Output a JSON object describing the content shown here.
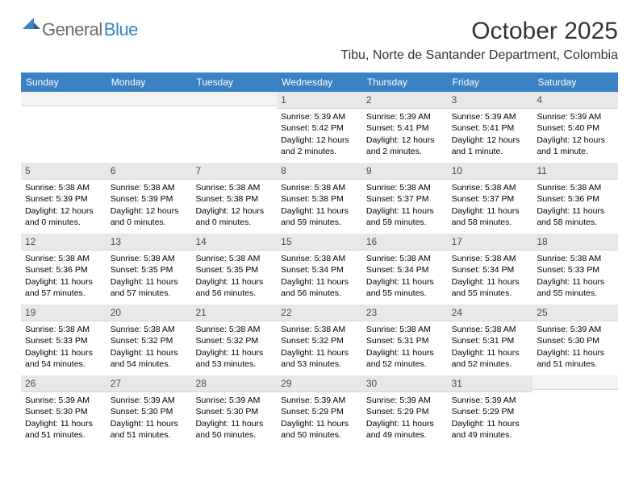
{
  "logo": {
    "text1": "General",
    "text2": "Blue"
  },
  "title": "October 2025",
  "location": "Tibu, Norte de Santander Department, Colombia",
  "weekdays": [
    "Sunday",
    "Monday",
    "Tuesday",
    "Wednesday",
    "Thursday",
    "Friday",
    "Saturday"
  ],
  "colors": {
    "header_bg": "#3b82c4",
    "daynum_bg": "#e8e8e8",
    "text": "#000000",
    "logo_gray": "#6a6a6a"
  },
  "weeks": [
    [
      {
        "n": "",
        "sr": "",
        "ss": "",
        "dl": ""
      },
      {
        "n": "",
        "sr": "",
        "ss": "",
        "dl": ""
      },
      {
        "n": "",
        "sr": "",
        "ss": "",
        "dl": ""
      },
      {
        "n": "1",
        "sr": "Sunrise: 5:39 AM",
        "ss": "Sunset: 5:42 PM",
        "dl": "Daylight: 12 hours and 2 minutes."
      },
      {
        "n": "2",
        "sr": "Sunrise: 5:39 AM",
        "ss": "Sunset: 5:41 PM",
        "dl": "Daylight: 12 hours and 2 minutes."
      },
      {
        "n": "3",
        "sr": "Sunrise: 5:39 AM",
        "ss": "Sunset: 5:41 PM",
        "dl": "Daylight: 12 hours and 1 minute."
      },
      {
        "n": "4",
        "sr": "Sunrise: 5:39 AM",
        "ss": "Sunset: 5:40 PM",
        "dl": "Daylight: 12 hours and 1 minute."
      }
    ],
    [
      {
        "n": "5",
        "sr": "Sunrise: 5:38 AM",
        "ss": "Sunset: 5:39 PM",
        "dl": "Daylight: 12 hours and 0 minutes."
      },
      {
        "n": "6",
        "sr": "Sunrise: 5:38 AM",
        "ss": "Sunset: 5:39 PM",
        "dl": "Daylight: 12 hours and 0 minutes."
      },
      {
        "n": "7",
        "sr": "Sunrise: 5:38 AM",
        "ss": "Sunset: 5:38 PM",
        "dl": "Daylight: 12 hours and 0 minutes."
      },
      {
        "n": "8",
        "sr": "Sunrise: 5:38 AM",
        "ss": "Sunset: 5:38 PM",
        "dl": "Daylight: 11 hours and 59 minutes."
      },
      {
        "n": "9",
        "sr": "Sunrise: 5:38 AM",
        "ss": "Sunset: 5:37 PM",
        "dl": "Daylight: 11 hours and 59 minutes."
      },
      {
        "n": "10",
        "sr": "Sunrise: 5:38 AM",
        "ss": "Sunset: 5:37 PM",
        "dl": "Daylight: 11 hours and 58 minutes."
      },
      {
        "n": "11",
        "sr": "Sunrise: 5:38 AM",
        "ss": "Sunset: 5:36 PM",
        "dl": "Daylight: 11 hours and 58 minutes."
      }
    ],
    [
      {
        "n": "12",
        "sr": "Sunrise: 5:38 AM",
        "ss": "Sunset: 5:36 PM",
        "dl": "Daylight: 11 hours and 57 minutes."
      },
      {
        "n": "13",
        "sr": "Sunrise: 5:38 AM",
        "ss": "Sunset: 5:35 PM",
        "dl": "Daylight: 11 hours and 57 minutes."
      },
      {
        "n": "14",
        "sr": "Sunrise: 5:38 AM",
        "ss": "Sunset: 5:35 PM",
        "dl": "Daylight: 11 hours and 56 minutes."
      },
      {
        "n": "15",
        "sr": "Sunrise: 5:38 AM",
        "ss": "Sunset: 5:34 PM",
        "dl": "Daylight: 11 hours and 56 minutes."
      },
      {
        "n": "16",
        "sr": "Sunrise: 5:38 AM",
        "ss": "Sunset: 5:34 PM",
        "dl": "Daylight: 11 hours and 55 minutes."
      },
      {
        "n": "17",
        "sr": "Sunrise: 5:38 AM",
        "ss": "Sunset: 5:34 PM",
        "dl": "Daylight: 11 hours and 55 minutes."
      },
      {
        "n": "18",
        "sr": "Sunrise: 5:38 AM",
        "ss": "Sunset: 5:33 PM",
        "dl": "Daylight: 11 hours and 55 minutes."
      }
    ],
    [
      {
        "n": "19",
        "sr": "Sunrise: 5:38 AM",
        "ss": "Sunset: 5:33 PM",
        "dl": "Daylight: 11 hours and 54 minutes."
      },
      {
        "n": "20",
        "sr": "Sunrise: 5:38 AM",
        "ss": "Sunset: 5:32 PM",
        "dl": "Daylight: 11 hours and 54 minutes."
      },
      {
        "n": "21",
        "sr": "Sunrise: 5:38 AM",
        "ss": "Sunset: 5:32 PM",
        "dl": "Daylight: 11 hours and 53 minutes."
      },
      {
        "n": "22",
        "sr": "Sunrise: 5:38 AM",
        "ss": "Sunset: 5:32 PM",
        "dl": "Daylight: 11 hours and 53 minutes."
      },
      {
        "n": "23",
        "sr": "Sunrise: 5:38 AM",
        "ss": "Sunset: 5:31 PM",
        "dl": "Daylight: 11 hours and 52 minutes."
      },
      {
        "n": "24",
        "sr": "Sunrise: 5:38 AM",
        "ss": "Sunset: 5:31 PM",
        "dl": "Daylight: 11 hours and 52 minutes."
      },
      {
        "n": "25",
        "sr": "Sunrise: 5:39 AM",
        "ss": "Sunset: 5:30 PM",
        "dl": "Daylight: 11 hours and 51 minutes."
      }
    ],
    [
      {
        "n": "26",
        "sr": "Sunrise: 5:39 AM",
        "ss": "Sunset: 5:30 PM",
        "dl": "Daylight: 11 hours and 51 minutes."
      },
      {
        "n": "27",
        "sr": "Sunrise: 5:39 AM",
        "ss": "Sunset: 5:30 PM",
        "dl": "Daylight: 11 hours and 51 minutes."
      },
      {
        "n": "28",
        "sr": "Sunrise: 5:39 AM",
        "ss": "Sunset: 5:30 PM",
        "dl": "Daylight: 11 hours and 50 minutes."
      },
      {
        "n": "29",
        "sr": "Sunrise: 5:39 AM",
        "ss": "Sunset: 5:29 PM",
        "dl": "Daylight: 11 hours and 50 minutes."
      },
      {
        "n": "30",
        "sr": "Sunrise: 5:39 AM",
        "ss": "Sunset: 5:29 PM",
        "dl": "Daylight: 11 hours and 49 minutes."
      },
      {
        "n": "31",
        "sr": "Sunrise: 5:39 AM",
        "ss": "Sunset: 5:29 PM",
        "dl": "Daylight: 11 hours and 49 minutes."
      },
      {
        "n": "",
        "sr": "",
        "ss": "",
        "dl": ""
      }
    ]
  ]
}
